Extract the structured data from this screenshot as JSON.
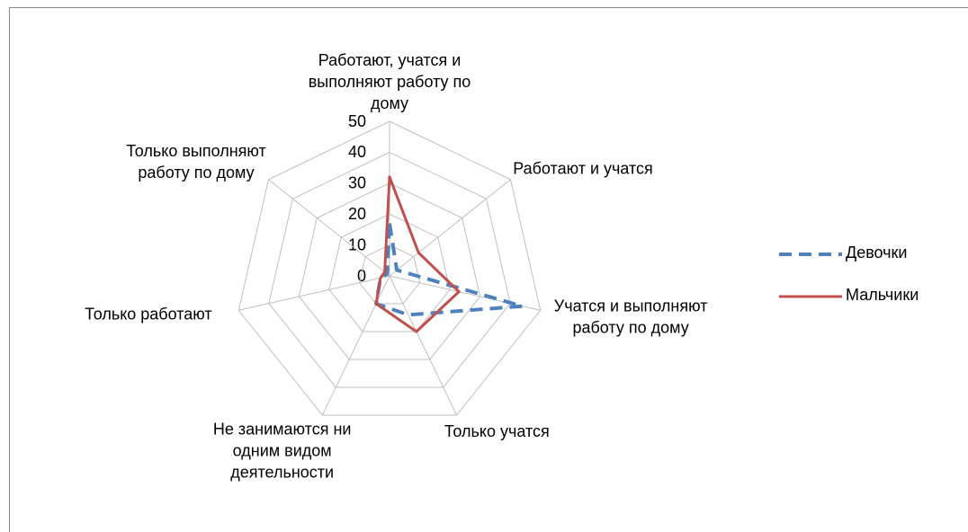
{
  "chart_data": {
    "type": "radar",
    "categories": [
      "Работают, учатся и выполняют работу по дому",
      "Работают и учатся",
      "Учатся и выполняют работу по дому",
      "Только учатся",
      "Не занимаются ни одним видом деятельности",
      "Только работают",
      "Только выполняют работу по дому"
    ],
    "series": [
      {
        "name": "Девочки",
        "color": "#4f81bd",
        "dash": true,
        "values": [
          17,
          3,
          44,
          14,
          10,
          3,
          1
        ]
      },
      {
        "name": "Мальчики",
        "color": "#c0504d",
        "dash": false,
        "values": [
          32,
          12,
          23,
          20,
          10,
          3,
          2
        ]
      }
    ],
    "rlim": [
      0,
      50
    ],
    "rticks": [
      0,
      10,
      20,
      30,
      40,
      50
    ],
    "grid": true,
    "legend": "right"
  }
}
